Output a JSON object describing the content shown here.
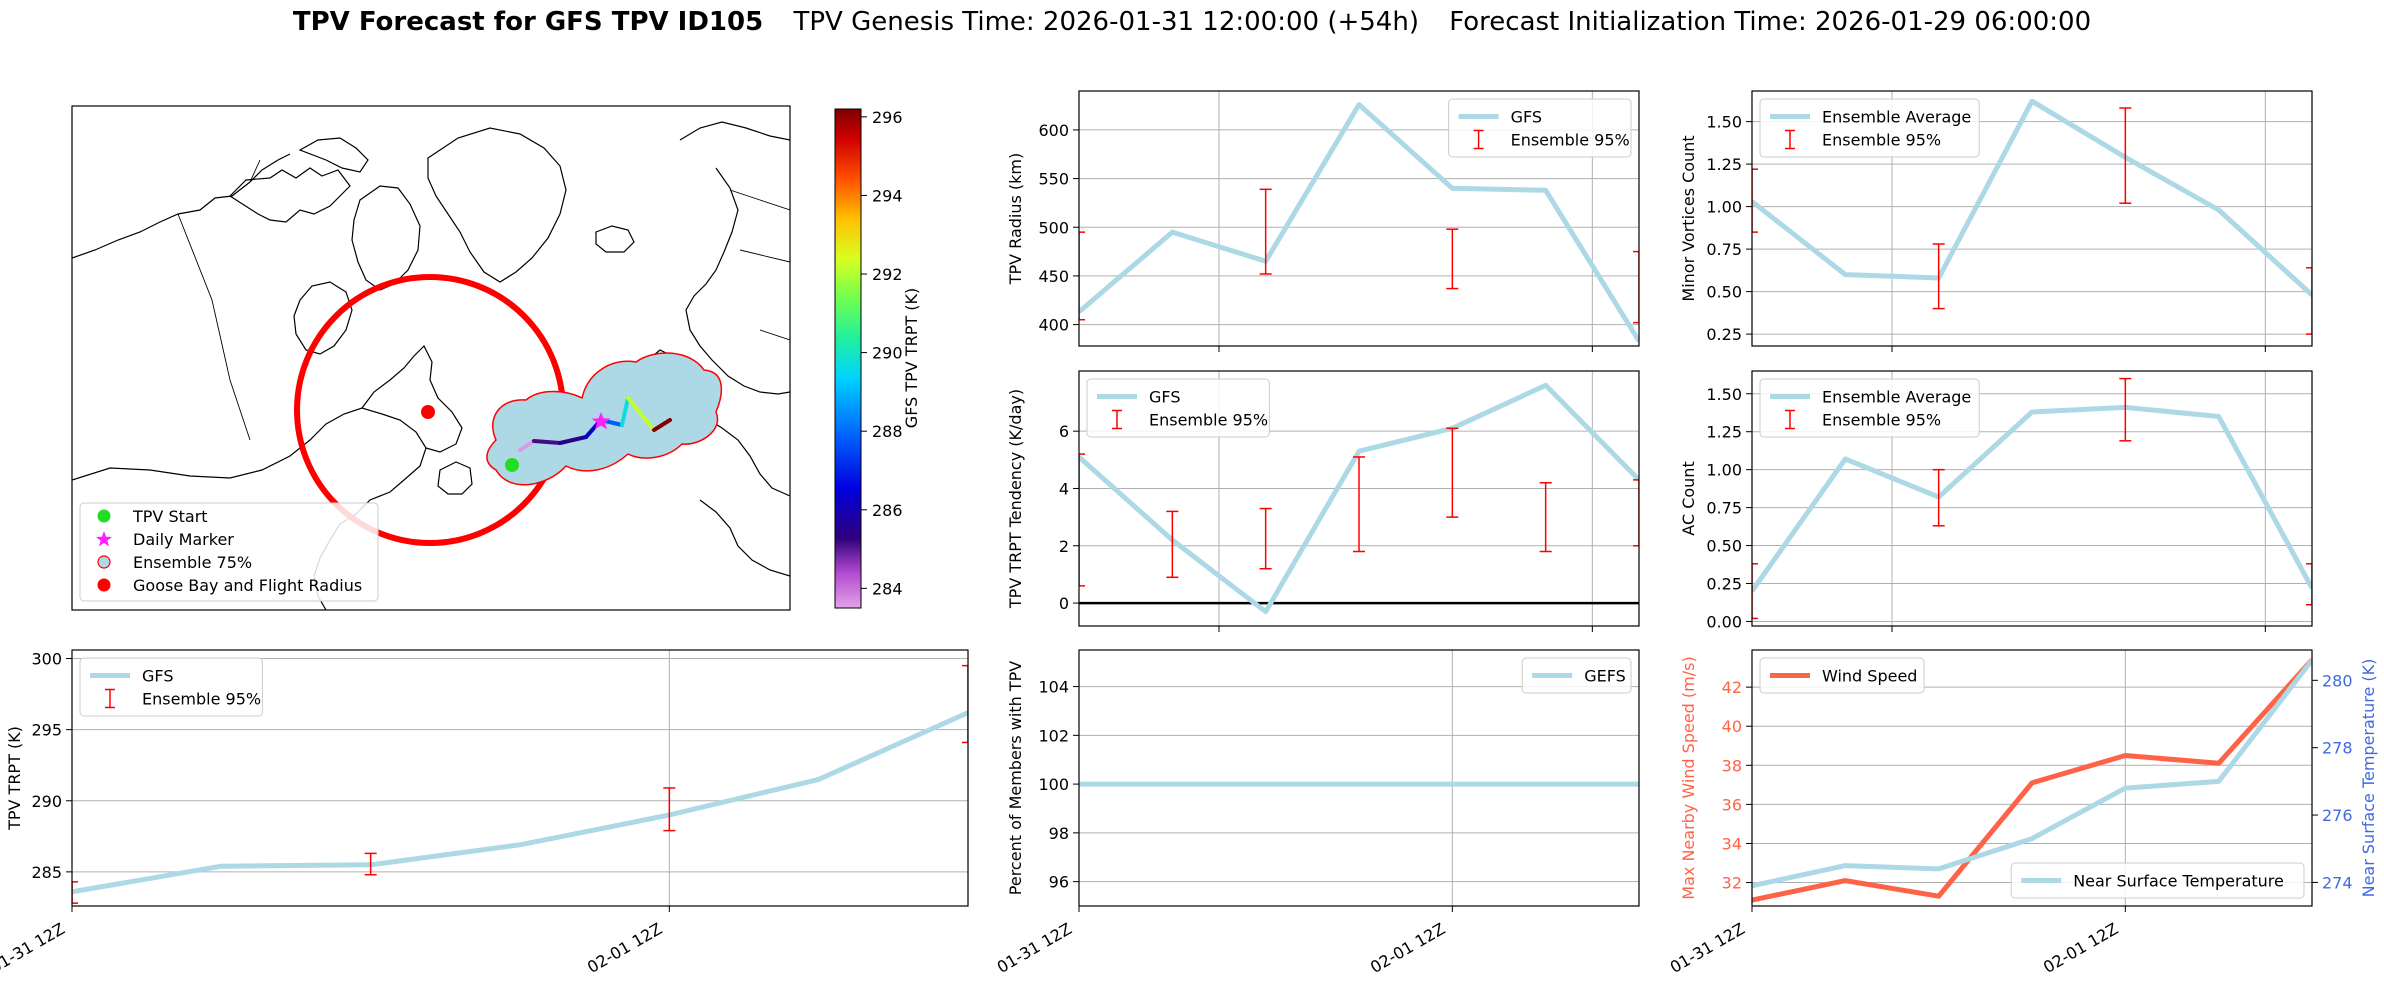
{
  "title": {
    "bold": "TPV Forecast for GFS TPV ID105",
    "genesis": "TPV Genesis Time: 2026-01-31 12:00:00 (+54h)",
    "init": "Forecast Initialization Time: 2026-01-29 06:00:00"
  },
  "colors": {
    "main_line": "#add8e6",
    "error_bar": "#ff0000",
    "wind": "#ff6347",
    "temp_axis": "#4169e1",
    "goose_circle": "#ff0000",
    "ensemble_fill": "#add8e6"
  },
  "map": {
    "colorbar_label": "GFS TPV TRPT (K)",
    "colorbar_ticks": [
      284,
      286,
      288,
      290,
      292,
      294,
      296
    ],
    "colorbar_range": [
      283.5,
      296.2
    ],
    "legend": [
      {
        "label": "TPV Start",
        "marker": "green-dot"
      },
      {
        "label": "Daily Marker",
        "marker": "magenta-star"
      },
      {
        "label": "Ensemble 75%",
        "marker": "lightblue-dot-red-edge"
      },
      {
        "label": "Goose Bay and Flight Radius",
        "marker": "red-dot"
      }
    ],
    "track_trpt": [
      283.6,
      285.4,
      285.5,
      286.9,
      289.0,
      291.5,
      296.2
    ]
  },
  "chart_data": [
    {
      "id": "radius",
      "type": "line",
      "ylabel": "TPV Radius (km)",
      "ylim": [
        378,
        640
      ],
      "yticks": [
        400,
        450,
        500,
        550,
        600
      ],
      "x": [
        0,
        1,
        2,
        3,
        4,
        5,
        6
      ],
      "xtick_pos": [
        1.5,
        5.5
      ],
      "xtick_labels": [
        "",
        ""
      ],
      "legend_loc": "upper right",
      "series": [
        {
          "name": "GFS",
          "values": [
            413,
            495,
            465,
            626,
            540,
            538,
            383
          ]
        }
      ],
      "errorbars": {
        "name": "Ensemble 95%",
        "x": [
          0,
          2,
          4,
          6
        ],
        "low": [
          405,
          452,
          437,
          402
        ],
        "high": [
          495,
          539,
          498,
          475
        ]
      }
    },
    {
      "id": "minor",
      "type": "line",
      "ylabel": "Minor Vortices Count",
      "ylim": [
        0.18,
        1.68
      ],
      "yticks": [
        0.25,
        0.5,
        0.75,
        1.0,
        1.25,
        1.5
      ],
      "ytick_labels": [
        "0.25",
        "0.50",
        "0.75",
        "1.00",
        "1.25",
        "1.50"
      ],
      "x": [
        0,
        1,
        2,
        3,
        4,
        5,
        6
      ],
      "xtick_pos": [
        1.5,
        5.5
      ],
      "xtick_labels": [
        "",
        ""
      ],
      "legend_loc": "upper left",
      "series": [
        {
          "name": "Ensemble Average",
          "values": [
            1.03,
            0.6,
            0.58,
            1.62,
            1.29,
            0.98,
            0.48
          ]
        }
      ],
      "errorbars": {
        "name": "Ensemble 95%",
        "x": [
          0,
          2,
          4,
          6
        ],
        "low": [
          0.85,
          0.4,
          1.02,
          0.25
        ],
        "high": [
          1.22,
          0.78,
          1.58,
          0.64
        ]
      }
    },
    {
      "id": "tendency",
      "type": "line",
      "ylabel": "TPV TRPT Tendency (K/day)",
      "ylim": [
        -0.8,
        8.1
      ],
      "yticks": [
        0,
        2,
        4,
        6
      ],
      "x": [
        0,
        1,
        2,
        3,
        4,
        5,
        6
      ],
      "xtick_pos": [
        1.5,
        5.5
      ],
      "xtick_labels": [
        "",
        ""
      ],
      "legend_loc": "upper left",
      "zero_line": true,
      "series": [
        {
          "name": "GFS",
          "values": [
            5.1,
            2.2,
            -0.3,
            5.3,
            6.1,
            7.6,
            4.3
          ]
        }
      ],
      "errorbars": {
        "name": "Ensemble 95%",
        "x": [
          0,
          1,
          2,
          3,
          4,
          5,
          6
        ],
        "low": [
          0.6,
          0.9,
          1.2,
          1.8,
          3.0,
          1.8,
          2.0
        ],
        "high": [
          5.2,
          3.2,
          3.3,
          5.1,
          6.1,
          4.2,
          4.3
        ]
      }
    },
    {
      "id": "ac",
      "type": "line",
      "ylabel": "AC Count",
      "ylim": [
        -0.03,
        1.65
      ],
      "yticks": [
        0.0,
        0.25,
        0.5,
        0.75,
        1.0,
        1.25,
        1.5
      ],
      "ytick_labels": [
        "0.00",
        "0.25",
        "0.50",
        "0.75",
        "1.00",
        "1.25",
        "1.50"
      ],
      "x": [
        0,
        1,
        2,
        3,
        4,
        5,
        6
      ],
      "xtick_pos": [
        1.5,
        5.5
      ],
      "xtick_labels": [
        "",
        ""
      ],
      "legend_loc": "upper left",
      "series": [
        {
          "name": "Ensemble Average",
          "values": [
            0.2,
            1.07,
            0.82,
            1.38,
            1.41,
            1.35,
            0.22
          ]
        }
      ],
      "errorbars": {
        "name": "Ensemble 95%",
        "x": [
          0,
          2,
          4,
          6
        ],
        "low": [
          0.02,
          0.63,
          1.19,
          0.11
        ],
        "high": [
          0.38,
          1.0,
          1.6,
          0.38
        ]
      }
    },
    {
      "id": "trpt",
      "type": "line",
      "ylabel": "TPV TRPT (K)",
      "ylim": [
        282.6,
        300.6
      ],
      "yticks": [
        285,
        290,
        295,
        300
      ],
      "x": [
        0,
        1,
        2,
        3,
        4,
        5,
        6
      ],
      "xtick_pos": [
        0,
        4
      ],
      "xtick_labels": [
        "01-31 12Z",
        "02-01 12Z"
      ],
      "legend_loc": "upper left",
      "series": [
        {
          "name": "GFS",
          "values": [
            283.6,
            285.4,
            285.5,
            286.9,
            289.0,
            291.5,
            296.2
          ]
        }
      ],
      "errorbars": {
        "name": "Ensemble 95%",
        "x": [
          0,
          2,
          4,
          6
        ],
        "low": [
          282.8,
          284.8,
          287.9,
          294.1
        ],
        "high": [
          284.3,
          286.3,
          290.9,
          299.5
        ]
      }
    },
    {
      "id": "percent",
      "type": "line",
      "ylabel": "Percent of Members with TPV",
      "ylim": [
        95,
        105.5
      ],
      "yticks": [
        96,
        98,
        100,
        102,
        104
      ],
      "x": [
        0,
        1,
        2,
        3,
        4,
        5,
        6
      ],
      "xtick_pos": [
        0,
        4
      ],
      "xtick_labels": [
        "01-31 12Z",
        "02-01 12Z"
      ],
      "legend_loc": "upper right",
      "series": [
        {
          "name": "GEFS",
          "values": [
            100,
            100,
            100,
            100,
            100,
            100,
            100
          ]
        }
      ]
    },
    {
      "id": "wind_temp",
      "type": "line",
      "ylabel": "Max Nearby Wind Speed (m/s)",
      "ylim": [
        30.8,
        43.9
      ],
      "yticks": [
        32,
        34,
        36,
        38,
        40,
        42
      ],
      "y2label": "Near Surface Temperature (K)",
      "y2lim": [
        273.3,
        280.9
      ],
      "y2ticks": [
        274,
        276,
        278,
        280
      ],
      "x": [
        0,
        1,
        2,
        3,
        4,
        5,
        6
      ],
      "xtick_pos": [
        0,
        4
      ],
      "xtick_labels": [
        "01-31 12Z",
        "02-01 12Z"
      ],
      "legend_loc": "upper left",
      "legend2_loc": "lower right",
      "series": [
        {
          "name": "Wind Speed",
          "axis": "left",
          "values": [
            31.1,
            32.1,
            31.3,
            37.1,
            38.5,
            38.1,
            43.4
          ]
        },
        {
          "name": "Near Surface Temperature",
          "axis": "right",
          "values": [
            273.9,
            274.5,
            274.4,
            275.3,
            276.8,
            277.0,
            280.6
          ]
        }
      ]
    }
  ]
}
